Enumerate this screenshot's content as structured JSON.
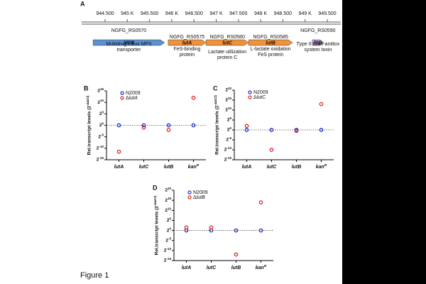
{
  "figure_label": "Figure 1",
  "gene_map": {
    "panel": "A",
    "ruler": [
      {
        "value": 944.5,
        "label": "944.500"
      },
      {
        "value": 945,
        "label": "945 K"
      },
      {
        "value": 945.5,
        "label": "945.500"
      },
      {
        "value": 946,
        "label": "946 K"
      },
      {
        "value": 946.5,
        "label": "946.500"
      },
      {
        "value": 947,
        "label": "947 K"
      },
      {
        "value": 947.5,
        "label": "947.500"
      },
      {
        "value": 948,
        "label": "948 K"
      },
      {
        "value": 948.5,
        "label": "948.500"
      },
      {
        "value": 949,
        "label": "949 K"
      },
      {
        "value": 949.5,
        "label": "949.500"
      }
    ],
    "genes": [
      {
        "locus": "NGFG_RS0570",
        "symbol": "MFS",
        "description": [
          "Multidrug efflux MFS",
          "transporter"
        ],
        "start": 944.23,
        "end": 945.84,
        "color": "#5b8fd0"
      },
      {
        "locus": "NGFG_RS0575",
        "symbol": "lutA",
        "description": [
          "FeS-binding",
          "protein"
        ],
        "start": 945.92,
        "end": 946.77,
        "color": "#f0923a"
      },
      {
        "locus": "NGFG_RS0580",
        "symbol": "lutC",
        "description": [
          "Lactate utilization",
          "protein C"
        ],
        "start": 946.77,
        "end": 947.73,
        "color": "#f0923a"
      },
      {
        "locus": "NGFG_RS0585",
        "symbol": "lutB",
        "description": [
          "L-lactate oxidation",
          "FeS protein"
        ],
        "start": 947.73,
        "end": 948.72,
        "color": "#f0923a"
      },
      {
        "locus": "NGFG_RS0590",
        "symbol": "fitB",
        "description": [
          "Type II toxin-antitox",
          "system toxin"
        ],
        "start": 949.16,
        "end": 949.42,
        "color": "#c9a0dc"
      }
    ]
  },
  "chart_data": [
    {
      "type": "scatter",
      "panel": "B",
      "ylabel": "Rel.transcript levels (2^-ΔΔCt)",
      "categories": [
        "lutA",
        "lutC",
        "lutB",
        "kan^R"
      ],
      "series": [
        {
          "name": "N2009",
          "color": "#1c2fc0",
          "values": [
            0,
            0,
            0,
            0
          ]
        },
        {
          "name": "ΔlutA",
          "color": "#d42a2a",
          "values": [
            -11.5,
            -1,
            -2,
            12
          ]
        }
      ],
      "ylim": [
        -15,
        15
      ],
      "yticks": [
        {
          "value": -15,
          "label": "2^-15"
        },
        {
          "value": -10,
          "label": "2^-10"
        },
        {
          "value": -5,
          "label": "2^-5"
        },
        {
          "value": 0,
          "label": "2^0"
        },
        {
          "value": 5,
          "label": "2^5"
        },
        {
          "value": 10,
          "label": "2^10"
        },
        {
          "value": 15,
          "label": "2^15"
        }
      ],
      "hline": 0
    },
    {
      "type": "scatter",
      "panel": "C",
      "ylabel": "Rel.transcript levels (2^-ΔΔCt)",
      "categories": [
        "lutA",
        "lutC",
        "lutB",
        "kan^R"
      ],
      "series": [
        {
          "name": "N2009",
          "color": "#1c2fc0",
          "values": [
            0,
            0,
            0,
            0
          ]
        },
        {
          "name": "ΔlutC",
          "color": "#d42a2a",
          "values": [
            2,
            -10,
            -0.5,
            13
          ]
        }
      ],
      "ylim": [
        -15,
        20
      ],
      "yticks": [
        {
          "value": -15,
          "label": "2^-15"
        },
        {
          "value": -10,
          "label": "2^-10"
        },
        {
          "value": -5,
          "label": "2^-5"
        },
        {
          "value": 0,
          "label": "2^0"
        },
        {
          "value": 5,
          "label": "2^5"
        },
        {
          "value": 10,
          "label": "2^10"
        },
        {
          "value": 15,
          "label": "2^15"
        },
        {
          "value": 20,
          "label": "2^20"
        }
      ],
      "hline": 0
    },
    {
      "type": "scatter",
      "panel": "D",
      "ylabel": "Rel.transcript levels (2^-ΔΔCt)",
      "categories": [
        "lutA",
        "lutC",
        "lutB",
        "kan^R"
      ],
      "series": [
        {
          "name": "N2009",
          "color": "#1c2fc0",
          "values": [
            0,
            0,
            0,
            0
          ]
        },
        {
          "name": "ΔlutB",
          "color": "#d42a2a",
          "values": [
            1.5,
            1.5,
            -12,
            14
          ]
        }
      ],
      "ylim": [
        -15,
        20
      ],
      "yticks": [
        {
          "value": -15,
          "label": "2^-15"
        },
        {
          "value": -10,
          "label": "2^-10"
        },
        {
          "value": -5,
          "label": "2^-5"
        },
        {
          "value": 0,
          "label": "2^0"
        },
        {
          "value": 5,
          "label": "2^5"
        },
        {
          "value": 10,
          "label": "2^10"
        },
        {
          "value": 15,
          "label": "2^15"
        },
        {
          "value": 20,
          "label": "2^20"
        }
      ],
      "hline": 0
    }
  ]
}
